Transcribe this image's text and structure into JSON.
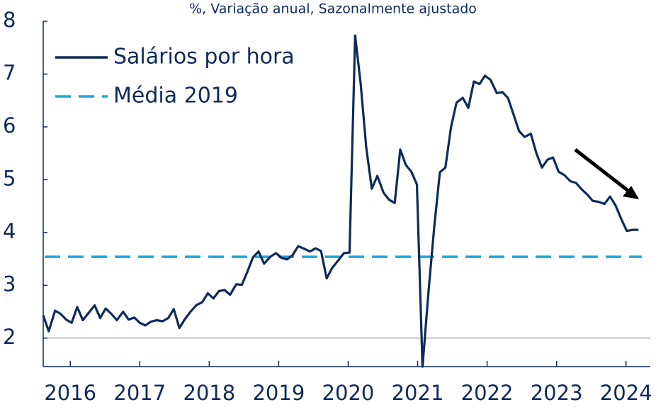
{
  "chart_data": {
    "type": "line",
    "subtitle": "%, Variação anual, Sazonalmente ajustado",
    "x": [
      2015.61,
      2015.69,
      2015.78,
      2015.86,
      2015.94,
      2016.02,
      2016.1,
      2016.18,
      2016.26,
      2016.35,
      2016.43,
      2016.51,
      2016.59,
      2016.67,
      2016.76,
      2016.84,
      2016.92,
      2017.0,
      2017.08,
      2017.16,
      2017.24,
      2017.33,
      2017.41,
      2017.49,
      2017.57,
      2017.65,
      2017.73,
      2017.82,
      2017.9,
      2017.98,
      2018.06,
      2018.14,
      2018.22,
      2018.3,
      2018.39,
      2018.47,
      2018.55,
      2018.63,
      2018.71,
      2018.79,
      2018.88,
      2018.96,
      2019.04,
      2019.12,
      2019.2,
      2019.28,
      2019.37,
      2019.45,
      2019.53,
      2019.61,
      2019.69,
      2019.77,
      2019.85,
      2019.94,
      2020.02,
      2020.1,
      2020.18,
      2020.26,
      2020.34,
      2020.42,
      2020.51,
      2020.59,
      2020.67,
      2020.75,
      2020.83,
      2020.91,
      2020.99,
      2021.07,
      2021.16,
      2021.24,
      2021.32,
      2021.4,
      2021.48,
      2021.56,
      2021.65,
      2021.73,
      2021.81,
      2021.89,
      2021.97,
      2022.05,
      2022.14,
      2022.22,
      2022.3,
      2022.38,
      2022.46,
      2022.54,
      2022.63,
      2022.71,
      2022.79,
      2022.87,
      2022.95,
      2023.03,
      2023.11,
      2023.2,
      2023.28,
      2023.36,
      2023.44,
      2023.52,
      2023.61,
      2023.69,
      2023.77,
      2023.85,
      2023.93,
      2024.01,
      2024.1,
      2024.18
    ],
    "series": [
      {
        "name": "Salários por hora",
        "color": "#0d2a5c",
        "values": [
          2.43,
          2.13,
          2.52,
          2.46,
          2.35,
          2.29,
          2.59,
          2.34,
          2.47,
          2.62,
          2.38,
          2.56,
          2.46,
          2.34,
          2.5,
          2.35,
          2.39,
          2.29,
          2.24,
          2.31,
          2.34,
          2.32,
          2.38,
          2.55,
          2.19,
          2.36,
          2.5,
          2.63,
          2.68,
          2.85,
          2.75,
          2.89,
          2.91,
          2.82,
          3.02,
          3.01,
          3.26,
          3.53,
          3.64,
          3.41,
          3.54,
          3.61,
          3.52,
          3.49,
          3.57,
          3.74,
          3.69,
          3.64,
          3.7,
          3.65,
          3.13,
          3.33,
          3.46,
          3.61,
          3.62,
          7.73,
          6.82,
          5.61,
          4.83,
          5.07,
          4.75,
          4.62,
          4.56,
          5.57,
          5.28,
          5.15,
          4.91,
          1.46,
          2.93,
          4.11,
          5.14,
          5.23,
          5.99,
          6.46,
          6.55,
          6.36,
          6.86,
          6.81,
          6.97,
          6.89,
          6.64,
          6.66,
          6.55,
          6.24,
          5.92,
          5.81,
          5.87,
          5.5,
          5.23,
          5.38,
          5.42,
          5.15,
          5.09,
          4.97,
          4.94,
          4.82,
          4.72,
          4.6,
          4.58,
          4.54,
          4.68,
          4.51,
          4.26,
          4.03,
          4.05,
          4.05
        ]
      }
    ],
    "reference_line": {
      "name": "Média 2019",
      "value": 3.54,
      "color": "#1ea7dc",
      "style": "dashed"
    },
    "baseline": 2,
    "xlim": [
      2015.61,
      2024.35
    ],
    "xticks": [
      2016,
      2017,
      2018,
      2019,
      2020,
      2021,
      2022,
      2023,
      2024
    ],
    "ylim": [
      1.46,
      8
    ],
    "yticks": [
      2,
      3,
      4,
      5,
      6,
      7,
      8
    ],
    "legend": "upper left"
  }
}
